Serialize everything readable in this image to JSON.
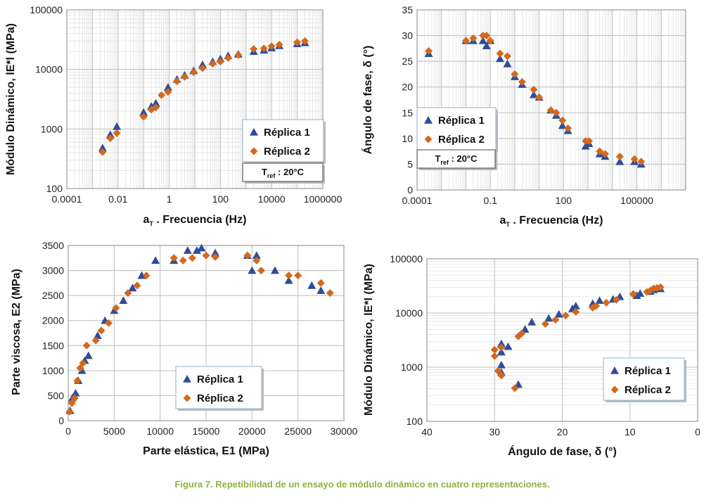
{
  "colors": {
    "replica1": "#2e4d9a",
    "replica2": "#d2691e",
    "caption": "#8cb43c"
  },
  "caption": "Figura 7. Repetibilidad de un ensayo de módulo dinámico en cuatro representaciones.",
  "chart_data": [
    {
      "type": "scatter",
      "xlabel": "aT . Frecuencia (Hz)",
      "xlabel_main": "a",
      "xlabel_sub": "T",
      "xlabel_rest": " . Frecuencia (Hz)",
      "ylabel": "Módulo Dinámico, lE*l (MPa)",
      "x_scale": "log",
      "y_scale": "log",
      "xlim": [
        0.0001,
        1000000
      ],
      "ylim": [
        100,
        100000
      ],
      "xticks": [
        0.0001,
        0.01,
        1,
        100,
        10000,
        1000000
      ],
      "xtick_labels": [
        "0.0001",
        "0.01",
        "1",
        "100",
        "10000",
        "1000000"
      ],
      "yticks": [
        100,
        1000,
        10000,
        100000
      ],
      "ytick_labels": [
        "100",
        "1000",
        "10000",
        "100000"
      ],
      "grid": true,
      "legend": "lower-right",
      "annotation": {
        "main": "T",
        "sub": "ref",
        "rest": " : 20°C"
      },
      "series": [
        {
          "name": "Réplica 1",
          "marker": "triangle",
          "x": [
            0.0025,
            0.005,
            0.009,
            0.1,
            0.2,
            0.3,
            0.9,
            2,
            4,
            9,
            20,
            50,
            100,
            200,
            500,
            2000,
            5000,
            10000,
            20000,
            100000,
            200000
          ],
          "y": [
            480,
            800,
            1100,
            1900,
            2400,
            2700,
            5000,
            6800,
            8000,
            9500,
            12000,
            13500,
            15000,
            17000,
            18000,
            20000,
            21000,
            23000,
            25000,
            27000,
            28000
          ]
        },
        {
          "name": "Réplica 2",
          "marker": "diamond",
          "x": [
            0.0025,
            0.005,
            0.009,
            0.1,
            0.2,
            0.3,
            0.5,
            0.9,
            2,
            4,
            9,
            20,
            50,
            100,
            200,
            500,
            2000,
            5000,
            10000,
            20000,
            100000,
            200000
          ],
          "y": [
            410,
            700,
            850,
            1600,
            2100,
            2300,
            3700,
            4200,
            6300,
            7500,
            9000,
            10500,
            12500,
            13500,
            15500,
            17500,
            22000,
            22500,
            24500,
            26000,
            28500,
            30000
          ]
        }
      ]
    },
    {
      "type": "scatter",
      "xlabel": "aT . Frecuencia (Hz)",
      "xlabel_main": "a",
      "xlabel_sub": "T",
      "xlabel_rest": " . Frecuencia (Hz)",
      "ylabel": "Ángulo de fase, δ (°)",
      "x_scale": "log",
      "y_scale": "linear",
      "xlim": [
        0.0001,
        10000000
      ],
      "ylim": [
        0,
        35
      ],
      "xticks": [
        0.0001,
        0.1,
        100,
        100000
      ],
      "xtick_labels": [
        "0.0001",
        "0.1",
        "100",
        "100000"
      ],
      "yticks": [
        0,
        5,
        10,
        15,
        20,
        25,
        30,
        35
      ],
      "ytick_labels": [
        "0",
        "5",
        "10",
        "15",
        "20",
        "25",
        "30",
        "35"
      ],
      "grid": true,
      "legend": "center-left",
      "annotation": {
        "main": "T",
        "sub": "ref",
        "rest": " : 20°C"
      },
      "series": [
        {
          "name": "Réplica 1",
          "marker": "triangle",
          "x": [
            0.0003,
            0.01,
            0.02,
            0.05,
            0.07,
            0.1,
            0.25,
            0.5,
            1,
            2,
            6,
            10,
            30,
            50,
            90,
            150,
            800,
            1100,
            3000,
            5000,
            20000,
            80000,
            150000
          ],
          "y": [
            26.5,
            29,
            29,
            29,
            28,
            29,
            25.5,
            24.5,
            22,
            20.5,
            18.5,
            18,
            15.5,
            14.5,
            12.5,
            11.5,
            8.5,
            9,
            7,
            6.5,
            5.5,
            5.5,
            5
          ]
        },
        {
          "name": "Réplica 2",
          "marker": "diamond",
          "x": [
            0.0003,
            0.01,
            0.02,
            0.05,
            0.07,
            0.1,
            0.25,
            0.5,
            1,
            2,
            6,
            10,
            30,
            50,
            90,
            150,
            800,
            1100,
            3000,
            5000,
            20000,
            80000,
            150000
          ],
          "y": [
            27,
            29,
            29.5,
            30,
            30,
            29,
            26.5,
            26,
            22.5,
            21,
            19.5,
            18,
            15.5,
            15,
            13.5,
            12,
            9.5,
            9.5,
            7.5,
            7,
            6.5,
            6,
            5.5
          ]
        }
      ]
    },
    {
      "type": "scatter",
      "xlabel": "Parte elástica, E1 (MPa)",
      "ylabel": "Parte viscosa, E2 (MPa)",
      "x_scale": "linear",
      "y_scale": "linear",
      "xlim": [
        0,
        30000
      ],
      "ylim": [
        0,
        3500
      ],
      "xticks": [
        0,
        5000,
        10000,
        15000,
        20000,
        25000,
        30000
      ],
      "xtick_labels": [
        "0",
        "5000",
        "10000",
        "15000",
        "20000",
        "25000",
        "30000"
      ],
      "yticks": [
        0,
        500,
        1000,
        1500,
        2000,
        2500,
        3000,
        3500
      ],
      "ytick_labels": [
        "0",
        "500",
        "1000",
        "1500",
        "2000",
        "2500",
        "3000",
        "3500"
      ],
      "grid": true,
      "legend": "lower-center",
      "series": [
        {
          "name": "Réplica 1",
          "marker": "triangle",
          "x": [
            200,
            450,
            800,
            1100,
            1500,
            1800,
            2200,
            3200,
            4000,
            5000,
            6000,
            7000,
            8000,
            9500,
            11500,
            13000,
            14000,
            14500,
            16000,
            19500,
            20000,
            20500,
            22500,
            24000,
            26500,
            27500
          ],
          "y": [
            200,
            450,
            550,
            800,
            1000,
            1200,
            1300,
            1700,
            2000,
            2200,
            2400,
            2650,
            2900,
            3200,
            3200,
            3400,
            3400,
            3450,
            3350,
            3300,
            3000,
            3300,
            3000,
            2800,
            2700,
            2600
          ]
        },
        {
          "name": "Réplica 2",
          "marker": "diamond",
          "x": [
            150,
            400,
            700,
            1000,
            1300,
            1600,
            2000,
            3000,
            3600,
            4400,
            5200,
            6500,
            7500,
            8500,
            11500,
            12500,
            13500,
            15000,
            16000,
            19500,
            20500,
            21000,
            24000,
            25000,
            27500,
            28500
          ],
          "y": [
            180,
            350,
            450,
            800,
            1050,
            1150,
            1500,
            1600,
            1800,
            1950,
            2250,
            2550,
            2700,
            2900,
            3250,
            3200,
            3250,
            3300,
            3270,
            3300,
            3200,
            3000,
            2900,
            2900,
            2750,
            2550
          ]
        }
      ]
    },
    {
      "type": "scatter",
      "xlabel": "Ángulo de fase, δ (°)",
      "ylabel": "Módulo Dinámico, lE*l (MPa)",
      "x_scale": "linear",
      "x_reversed": true,
      "y_scale": "log",
      "xlim": [
        40,
        0
      ],
      "ylim": [
        100,
        100000
      ],
      "xticks": [
        40,
        30,
        20,
        10,
        0
      ],
      "xtick_labels": [
        "40",
        "30",
        "20",
        "10",
        "0"
      ],
      "yticks": [
        100,
        1000,
        10000,
        100000
      ],
      "ytick_labels": [
        "100",
        "1000",
        "10000",
        "100000"
      ],
      "grid": true,
      "legend": "lower-right",
      "series": [
        {
          "name": "Réplica 1",
          "marker": "triangle",
          "x": [
            26.5,
            29,
            29,
            29,
            28,
            29,
            25.5,
            24.5,
            22,
            20.5,
            18.5,
            18,
            15.5,
            14.5,
            12.5,
            11.5,
            9,
            8.5,
            7,
            6.5,
            5.5
          ],
          "y": [
            480,
            800,
            1100,
            1900,
            2400,
            2700,
            5000,
            6800,
            8000,
            9500,
            12000,
            13500,
            15000,
            17000,
            18000,
            20000,
            21000,
            23000,
            25000,
            27000,
            28000
          ]
        },
        {
          "name": "Réplica 2",
          "marker": "diamond",
          "x": [
            27,
            29,
            29.5,
            30,
            30,
            29,
            26.5,
            26,
            22.5,
            21,
            19.5,
            18,
            15.5,
            15,
            13.5,
            12,
            9.5,
            9.5,
            7.5,
            7,
            6.5,
            6,
            5.5
          ],
          "y": [
            410,
            700,
            850,
            1600,
            2100,
            2300,
            3700,
            4200,
            6300,
            7500,
            9000,
            10500,
            12500,
            13500,
            15500,
            17500,
            22000,
            22500,
            24500,
            26000,
            28500,
            29000,
            30000
          ]
        }
      ]
    }
  ]
}
